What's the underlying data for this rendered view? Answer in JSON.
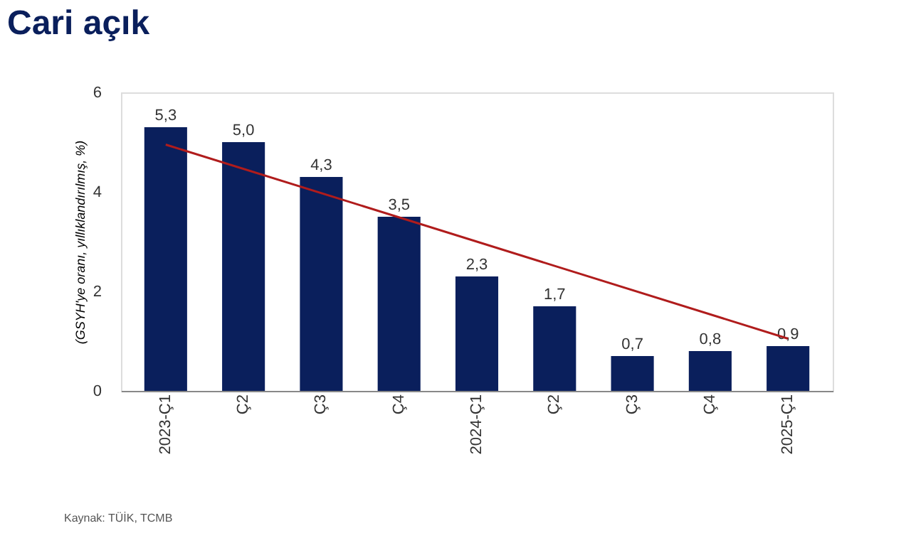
{
  "chart_data": {
    "type": "bar",
    "title": "Cari açık",
    "ylabel": "(GSYH'ye oranı, yıllıklandırılmış, %)",
    "categories": [
      "2023-Ç1",
      "Ç2",
      "Ç3",
      "Ç4",
      "2024-Ç1",
      "Ç2",
      "Ç3",
      "Ç4",
      "2025-Ç1"
    ],
    "series": [
      {
        "color": "#0a1f5c",
        "values": [
          5.3,
          5.0,
          4.3,
          3.5,
          2.3,
          1.7,
          0.7,
          0.8,
          0.9
        ],
        "value_labels": [
          "5,3",
          "5,0",
          "4,3",
          "3,5",
          "2,3",
          "1,7",
          "0,7",
          "0,8",
          "0,9"
        ]
      },
      {
        "type": "line",
        "color": "#b01c1c",
        "x": [
          "2023-Ç1",
          "2025-Ç1"
        ],
        "values": [
          4.95,
          1.05
        ]
      }
    ],
    "ylim": [
      0,
      6
    ],
    "yticks": [
      0,
      2,
      4,
      6
    ],
    "grid": false,
    "annotations": [
      "Kaynak: TÜİK, TCMB"
    ]
  }
}
